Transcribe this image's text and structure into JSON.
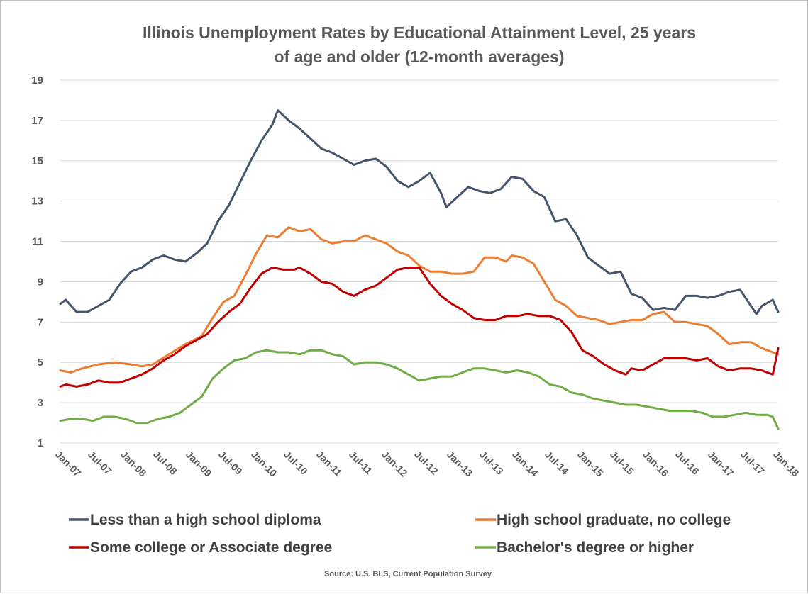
{
  "chart_data": {
    "type": "line",
    "title_line1": "Illinois Unemployment Rates by Educational Attainment Level, 25 years",
    "title_line2": "of age and older (12-month averages)",
    "source": "Source: U.S. BLS, Current Population Survey",
    "ylim": [
      1,
      19
    ],
    "yticks": [
      "1",
      "3",
      "5",
      "7",
      "9",
      "11",
      "13",
      "15",
      "17",
      "19"
    ],
    "x_tick_labels": [
      "Jan-07",
      "Jul-07",
      "Jan-08",
      "Jul-08",
      "Jan-09",
      "Jul-09",
      "Jan-10",
      "Jul-10",
      "Jan-11",
      "Jul-11",
      "Jan-12",
      "Jul-12",
      "Jan-13",
      "Jul-13",
      "Jan-14",
      "Jul-14",
      "Jan-15",
      "Jul-15",
      "Jan-16",
      "Jul-16",
      "Jan-17",
      "Jul-17",
      "Jan-18"
    ],
    "x_start": "Jan-07",
    "x_end": "Jan-18",
    "grid": true,
    "legend_position": "bottom",
    "series": [
      {
        "name": "Less than a high school diploma",
        "color": "#44546A",
        "points": [
          [
            "Jan-07",
            7.9
          ],
          [
            "Feb-07",
            8.1
          ],
          [
            "Apr-07",
            7.5
          ],
          [
            "Jun-07",
            7.5
          ],
          [
            "Aug-07",
            7.8
          ],
          [
            "Oct-07",
            8.1
          ],
          [
            "Dec-07",
            8.9
          ],
          [
            "Feb-08",
            9.5
          ],
          [
            "Apr-08",
            9.7
          ],
          [
            "Jun-08",
            10.1
          ],
          [
            "Aug-08",
            10.3
          ],
          [
            "Oct-08",
            10.1
          ],
          [
            "Dec-08",
            10.0
          ],
          [
            "Feb-09",
            10.4
          ],
          [
            "Apr-09",
            10.9
          ],
          [
            "Jun-09",
            12.0
          ],
          [
            "Aug-09",
            12.8
          ],
          [
            "Oct-09",
            13.9
          ],
          [
            "Dec-09",
            15.0
          ],
          [
            "Feb-10",
            16.0
          ],
          [
            "Apr-10",
            16.8
          ],
          [
            "May-10",
            17.5
          ],
          [
            "Jul-10",
            17.0
          ],
          [
            "Sep-10",
            16.6
          ],
          [
            "Nov-10",
            16.1
          ],
          [
            "Jan-11",
            15.6
          ],
          [
            "Mar-11",
            15.4
          ],
          [
            "May-11",
            15.1
          ],
          [
            "Jul-11",
            14.8
          ],
          [
            "Sep-11",
            15.0
          ],
          [
            "Nov-11",
            15.1
          ],
          [
            "Jan-12",
            14.7
          ],
          [
            "Mar-12",
            14.0
          ],
          [
            "May-12",
            13.7
          ],
          [
            "Jul-12",
            14.0
          ],
          [
            "Sep-12",
            14.4
          ],
          [
            "Nov-12",
            13.4
          ],
          [
            "Dec-12",
            12.7
          ],
          [
            "Feb-13",
            13.2
          ],
          [
            "Apr-13",
            13.7
          ],
          [
            "Jun-13",
            13.5
          ],
          [
            "Aug-13",
            13.4
          ],
          [
            "Oct-13",
            13.6
          ],
          [
            "Dec-13",
            14.2
          ],
          [
            "Feb-14",
            14.1
          ],
          [
            "Apr-14",
            13.5
          ],
          [
            "Jun-14",
            13.2
          ],
          [
            "Aug-14",
            12.0
          ],
          [
            "Oct-14",
            12.1
          ],
          [
            "Dec-14",
            11.3
          ],
          [
            "Feb-15",
            10.2
          ],
          [
            "Apr-15",
            9.8
          ],
          [
            "Jun-15",
            9.4
          ],
          [
            "Aug-15",
            9.5
          ],
          [
            "Oct-15",
            8.4
          ],
          [
            "Dec-15",
            8.2
          ],
          [
            "Feb-16",
            7.6
          ],
          [
            "Apr-16",
            7.7
          ],
          [
            "Jun-16",
            7.6
          ],
          [
            "Aug-16",
            8.3
          ],
          [
            "Oct-16",
            8.3
          ],
          [
            "Dec-16",
            8.2
          ],
          [
            "Feb-17",
            8.3
          ],
          [
            "Apr-17",
            8.5
          ],
          [
            "Jun-17",
            8.6
          ],
          [
            "Aug-17",
            7.8
          ],
          [
            "Sep-17",
            7.4
          ],
          [
            "Oct-17",
            7.8
          ],
          [
            "Dec-17",
            8.1
          ],
          [
            "Jan-18",
            7.5
          ]
        ]
      },
      {
        "name": "High school graduate, no college",
        "color": "#ED7D31",
        "points": [
          [
            "Jan-07",
            4.6
          ],
          [
            "Mar-07",
            4.5
          ],
          [
            "May-07",
            4.7
          ],
          [
            "Aug-07",
            4.9
          ],
          [
            "Nov-07",
            5.0
          ],
          [
            "Feb-08",
            4.9
          ],
          [
            "Apr-08",
            4.8
          ],
          [
            "Jun-08",
            4.9
          ],
          [
            "Sep-08",
            5.4
          ],
          [
            "Dec-08",
            5.9
          ],
          [
            "Mar-09",
            6.3
          ],
          [
            "May-09",
            7.2
          ],
          [
            "Jul-09",
            8.0
          ],
          [
            "Sep-09",
            8.3
          ],
          [
            "Nov-09",
            9.3
          ],
          [
            "Jan-10",
            10.4
          ],
          [
            "Mar-10",
            11.3
          ],
          [
            "May-10",
            11.2
          ],
          [
            "Jul-10",
            11.7
          ],
          [
            "Sep-10",
            11.5
          ],
          [
            "Nov-10",
            11.6
          ],
          [
            "Jan-11",
            11.1
          ],
          [
            "Mar-11",
            10.9
          ],
          [
            "May-11",
            11.0
          ],
          [
            "Jul-11",
            11.0
          ],
          [
            "Sep-11",
            11.3
          ],
          [
            "Nov-11",
            11.1
          ],
          [
            "Jan-12",
            10.9
          ],
          [
            "Mar-12",
            10.5
          ],
          [
            "May-12",
            10.3
          ],
          [
            "Jul-12",
            9.8
          ],
          [
            "Sep-12",
            9.5
          ],
          [
            "Nov-12",
            9.5
          ],
          [
            "Jan-13",
            9.4
          ],
          [
            "Mar-13",
            9.4
          ],
          [
            "May-13",
            9.5
          ],
          [
            "Jul-13",
            10.2
          ],
          [
            "Sep-13",
            10.2
          ],
          [
            "Nov-13",
            10.0
          ],
          [
            "Dec-13",
            10.3
          ],
          [
            "Feb-14",
            10.2
          ],
          [
            "Apr-14",
            9.9
          ],
          [
            "Jun-14",
            9.0
          ],
          [
            "Aug-14",
            8.1
          ],
          [
            "Oct-14",
            7.8
          ],
          [
            "Dec-14",
            7.3
          ],
          [
            "Feb-15",
            7.2
          ],
          [
            "Apr-15",
            7.1
          ],
          [
            "Jun-15",
            6.9
          ],
          [
            "Aug-15",
            7.0
          ],
          [
            "Oct-15",
            7.1
          ],
          [
            "Dec-15",
            7.1
          ],
          [
            "Feb-16",
            7.4
          ],
          [
            "Apr-16",
            7.5
          ],
          [
            "Jun-16",
            7.0
          ],
          [
            "Aug-16",
            7.0
          ],
          [
            "Oct-16",
            6.9
          ],
          [
            "Dec-16",
            6.8
          ],
          [
            "Feb-17",
            6.4
          ],
          [
            "Apr-17",
            5.9
          ],
          [
            "Jun-17",
            6.0
          ],
          [
            "Aug-17",
            6.0
          ],
          [
            "Oct-17",
            5.7
          ],
          [
            "Dec-17",
            5.5
          ],
          [
            "Jan-18",
            5.4
          ]
        ]
      },
      {
        "name": "Some college or Associate degree",
        "color": "#C00000",
        "points": [
          [
            "Jan-07",
            3.8
          ],
          [
            "Feb-07",
            3.9
          ],
          [
            "Apr-07",
            3.8
          ],
          [
            "Jun-07",
            3.9
          ],
          [
            "Aug-07",
            4.1
          ],
          [
            "Oct-07",
            4.0
          ],
          [
            "Dec-07",
            4.0
          ],
          [
            "Feb-08",
            4.2
          ],
          [
            "Apr-08",
            4.4
          ],
          [
            "Jun-08",
            4.7
          ],
          [
            "Aug-08",
            5.1
          ],
          [
            "Oct-08",
            5.4
          ],
          [
            "Dec-08",
            5.8
          ],
          [
            "Feb-09",
            6.1
          ],
          [
            "Apr-09",
            6.4
          ],
          [
            "Jun-09",
            7.0
          ],
          [
            "Aug-09",
            7.5
          ],
          [
            "Oct-09",
            7.9
          ],
          [
            "Dec-09",
            8.7
          ],
          [
            "Feb-10",
            9.4
          ],
          [
            "Apr-10",
            9.7
          ],
          [
            "Jun-10",
            9.6
          ],
          [
            "Aug-10",
            9.6
          ],
          [
            "Sep-10",
            9.7
          ],
          [
            "Nov-10",
            9.4
          ],
          [
            "Jan-11",
            9.0
          ],
          [
            "Mar-11",
            8.9
          ],
          [
            "May-11",
            8.5
          ],
          [
            "Jul-11",
            8.3
          ],
          [
            "Sep-11",
            8.6
          ],
          [
            "Nov-11",
            8.8
          ],
          [
            "Jan-12",
            9.2
          ],
          [
            "Mar-12",
            9.6
          ],
          [
            "May-12",
            9.7
          ],
          [
            "Jul-12",
            9.7
          ],
          [
            "Sep-12",
            8.9
          ],
          [
            "Nov-12",
            8.3
          ],
          [
            "Jan-13",
            7.9
          ],
          [
            "Mar-13",
            7.6
          ],
          [
            "May-13",
            7.2
          ],
          [
            "Jul-13",
            7.1
          ],
          [
            "Sep-13",
            7.1
          ],
          [
            "Nov-13",
            7.3
          ],
          [
            "Jan-14",
            7.3
          ],
          [
            "Mar-14",
            7.4
          ],
          [
            "May-14",
            7.3
          ],
          [
            "Jul-14",
            7.3
          ],
          [
            "Sep-14",
            7.1
          ],
          [
            "Nov-14",
            6.5
          ],
          [
            "Jan-15",
            5.6
          ],
          [
            "Mar-15",
            5.3
          ],
          [
            "May-15",
            4.9
          ],
          [
            "Jul-15",
            4.6
          ],
          [
            "Sep-15",
            4.4
          ],
          [
            "Oct-15",
            4.7
          ],
          [
            "Dec-15",
            4.6
          ],
          [
            "Feb-16",
            4.9
          ],
          [
            "Apr-16",
            5.2
          ],
          [
            "Jun-16",
            5.2
          ],
          [
            "Aug-16",
            5.2
          ],
          [
            "Oct-16",
            5.1
          ],
          [
            "Dec-16",
            5.2
          ],
          [
            "Feb-17",
            4.8
          ],
          [
            "Apr-17",
            4.6
          ],
          [
            "Jun-17",
            4.7
          ],
          [
            "Aug-17",
            4.7
          ],
          [
            "Oct-17",
            4.6
          ],
          [
            "Dec-17",
            4.4
          ],
          [
            "Jan-18",
            5.7
          ]
        ]
      },
      {
        "name": "Bachelor's degree or higher",
        "color": "#70AD47",
        "points": [
          [
            "Jan-07",
            2.1
          ],
          [
            "Mar-07",
            2.2
          ],
          [
            "May-07",
            2.2
          ],
          [
            "Jul-07",
            2.1
          ],
          [
            "Sep-07",
            2.3
          ],
          [
            "Nov-07",
            2.3
          ],
          [
            "Jan-08",
            2.2
          ],
          [
            "Mar-08",
            2.0
          ],
          [
            "May-08",
            2.0
          ],
          [
            "Jul-08",
            2.2
          ],
          [
            "Sep-08",
            2.3
          ],
          [
            "Nov-08",
            2.5
          ],
          [
            "Jan-09",
            2.9
          ],
          [
            "Mar-09",
            3.3
          ],
          [
            "May-09",
            4.2
          ],
          [
            "Jul-09",
            4.7
          ],
          [
            "Sep-09",
            5.1
          ],
          [
            "Nov-09",
            5.2
          ],
          [
            "Jan-10",
            5.5
          ],
          [
            "Mar-10",
            5.6
          ],
          [
            "May-10",
            5.5
          ],
          [
            "Jul-10",
            5.5
          ],
          [
            "Sep-10",
            5.4
          ],
          [
            "Nov-10",
            5.6
          ],
          [
            "Jan-11",
            5.6
          ],
          [
            "Mar-11",
            5.4
          ],
          [
            "May-11",
            5.3
          ],
          [
            "Jul-11",
            4.9
          ],
          [
            "Sep-11",
            5.0
          ],
          [
            "Nov-11",
            5.0
          ],
          [
            "Jan-12",
            4.9
          ],
          [
            "Mar-12",
            4.7
          ],
          [
            "May-12",
            4.4
          ],
          [
            "Jul-12",
            4.1
          ],
          [
            "Sep-12",
            4.2
          ],
          [
            "Nov-12",
            4.3
          ],
          [
            "Jan-13",
            4.3
          ],
          [
            "Mar-13",
            4.5
          ],
          [
            "May-13",
            4.7
          ],
          [
            "Jul-13",
            4.7
          ],
          [
            "Sep-13",
            4.6
          ],
          [
            "Nov-13",
            4.5
          ],
          [
            "Jan-14",
            4.6
          ],
          [
            "Mar-14",
            4.5
          ],
          [
            "May-14",
            4.3
          ],
          [
            "Jul-14",
            3.9
          ],
          [
            "Sep-14",
            3.8
          ],
          [
            "Nov-14",
            3.5
          ],
          [
            "Jan-15",
            3.4
          ],
          [
            "Mar-15",
            3.2
          ],
          [
            "May-15",
            3.1
          ],
          [
            "Jul-15",
            3.0
          ],
          [
            "Sep-15",
            2.9
          ],
          [
            "Nov-15",
            2.9
          ],
          [
            "Jan-16",
            2.8
          ],
          [
            "Mar-16",
            2.7
          ],
          [
            "May-16",
            2.6
          ],
          [
            "Jul-16",
            2.6
          ],
          [
            "Sep-16",
            2.6
          ],
          [
            "Nov-16",
            2.5
          ],
          [
            "Jan-17",
            2.3
          ],
          [
            "Mar-17",
            2.3
          ],
          [
            "May-17",
            2.4
          ],
          [
            "Jul-17",
            2.5
          ],
          [
            "Sep-17",
            2.4
          ],
          [
            "Nov-17",
            2.4
          ],
          [
            "Dec-17",
            2.3
          ],
          [
            "Jan-18",
            1.7
          ]
        ]
      }
    ]
  }
}
